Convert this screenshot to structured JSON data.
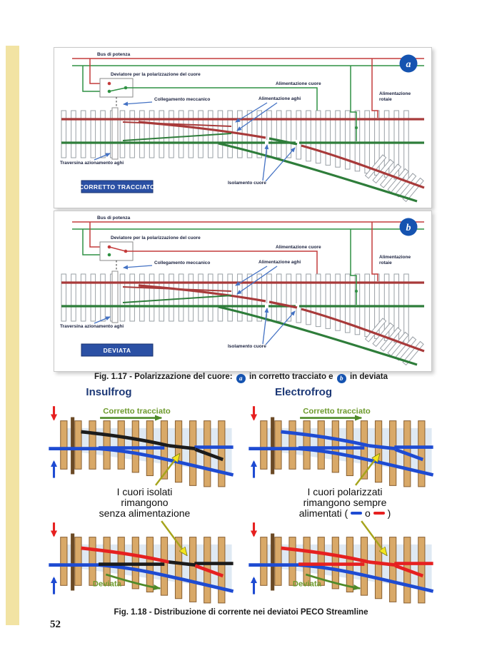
{
  "page": {
    "number": "52"
  },
  "colors": {
    "sidebar-yellow": "#F2E3A3",
    "navy": "#1C3876",
    "banner-blue": "#2B50A4",
    "badge-blue": "#1553B0",
    "label-arrow-blue": "#4472C4",
    "bus-red": "#C43B3B",
    "bus-green": "#2F9143",
    "rail17-red": "#A83A3A",
    "rail17-green": "#2E7D3A",
    "f18-red": "#E62020",
    "f18-blue": "#1E4BD2",
    "sleeper-tan": "#D9A968",
    "sleeper-border": "#8A6134",
    "route-green": "#6E9B2E",
    "arrow-green": "#4E8A28"
  },
  "fig17": {
    "labels": {
      "bus": "Bus di potenza",
      "deviatore": "Deviatore per la polarizzazione del cuore",
      "collegamento": "Collegamento meccanico",
      "alimentazione_cuore": "Alimentazione cuore",
      "alimentazione_aghi": "Alimentazione aghi",
      "alimentazione_rotaie_line1": "Alimentazione",
      "alimentazione_rotaie_line2": "rotaie",
      "traversina": "Traversina azionamento aghi",
      "isolamento": "Isolamento cuore"
    },
    "panel_a": {
      "badge": "a",
      "route": "CORRETTO TRACCIATO"
    },
    "panel_b": {
      "badge": "b",
      "route": "DEVIATA"
    },
    "caption": {
      "part1": "Fig. 1.17 - Polarizzazione del cuore:",
      "badge_a": "a",
      "part2": "in corretto tracciato e",
      "badge_b": "b",
      "part3": "in deviata"
    }
  },
  "fig18": {
    "insulfrog": {
      "heading": "Insulfrog",
      "top_route": "Corretto tracciato",
      "bottom_route": "Deviata",
      "note_line1": "I cuori isolati",
      "note_line2": "rimangono",
      "note_line3": "senza alimentazione"
    },
    "electrofrog": {
      "heading": "Electrofrog",
      "top_route": "Corretto tracciato",
      "bottom_route": "Deviata",
      "note_line1": "I cuori polarizzati",
      "note_line2": "rimangono sempre",
      "note_line3_prefix": "alimentati (",
      "note_line3_mid": "o",
      "note_line3_suffix": ")"
    },
    "caption": "Fig. 1.18 -  Distribuzione di corrente nei deviatoi PECO Streamline"
  }
}
